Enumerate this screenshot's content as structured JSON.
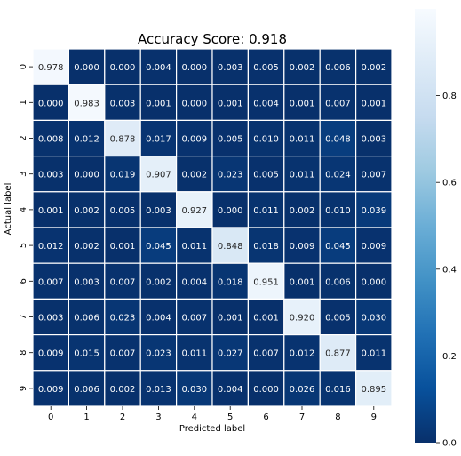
{
  "chart_data": {
    "type": "heatmap",
    "title": "Accuracy Score: 0.918",
    "xlabel": "Predicted label",
    "ylabel": "Actual label",
    "x_categories": [
      "0",
      "1",
      "2",
      "3",
      "4",
      "5",
      "6",
      "7",
      "8",
      "9"
    ],
    "y_categories": [
      "0",
      "1",
      "2",
      "3",
      "4",
      "5",
      "6",
      "7",
      "8",
      "9"
    ],
    "values": [
      [
        "0.978",
        "0.000",
        "0.000",
        "0.004",
        "0.000",
        "0.003",
        "0.005",
        "0.002",
        "0.006",
        "0.002"
      ],
      [
        "0.000",
        "0.983",
        "0.003",
        "0.001",
        "0.000",
        "0.001",
        "0.004",
        "0.001",
        "0.007",
        "0.001"
      ],
      [
        "0.008",
        "0.012",
        "0.878",
        "0.017",
        "0.009",
        "0.005",
        "0.010",
        "0.011",
        "0.048",
        "0.003"
      ],
      [
        "0.003",
        "0.000",
        "0.019",
        "0.907",
        "0.002",
        "0.023",
        "0.005",
        "0.011",
        "0.024",
        "0.007"
      ],
      [
        "0.001",
        "0.002",
        "0.005",
        "0.003",
        "0.927",
        "0.000",
        "0.011",
        "0.002",
        "0.010",
        "0.039"
      ],
      [
        "0.012",
        "0.002",
        "0.001",
        "0.045",
        "0.011",
        "0.848",
        "0.018",
        "0.009",
        "0.045",
        "0.009"
      ],
      [
        "0.007",
        "0.003",
        "0.007",
        "0.002",
        "0.004",
        "0.018",
        "0.951",
        "0.001",
        "0.006",
        "0.000"
      ],
      [
        "0.003",
        "0.006",
        "0.023",
        "0.004",
        "0.007",
        "0.001",
        "0.001",
        "0.920",
        "0.005",
        "0.030"
      ],
      [
        "0.009",
        "0.015",
        "0.007",
        "0.023",
        "0.011",
        "0.027",
        "0.007",
        "0.012",
        "0.877",
        "0.011"
      ],
      [
        "0.009",
        "0.006",
        "0.002",
        "0.013",
        "0.030",
        "0.004",
        "0.000",
        "0.026",
        "0.016",
        "0.895"
      ]
    ],
    "colormap": "Blues_r",
    "color_range": [
      0,
      1
    ],
    "colorbar_ticks": [
      "0.0",
      "0.2",
      "0.4",
      "0.6",
      "0.8"
    ],
    "colorbar_tick_values": [
      0.0,
      0.2,
      0.4,
      0.6,
      0.8
    ],
    "cell_text_color": "#ffffff",
    "dark_text_color": "#262626",
    "grid_line_color": "#ffffff",
    "colormap_stops": [
      "#08306b",
      "#08519c",
      "#2171b5",
      "#4292c6",
      "#6baed6",
      "#9ecae1",
      "#c6dbef",
      "#deebf7",
      "#f7fbff"
    ]
  }
}
